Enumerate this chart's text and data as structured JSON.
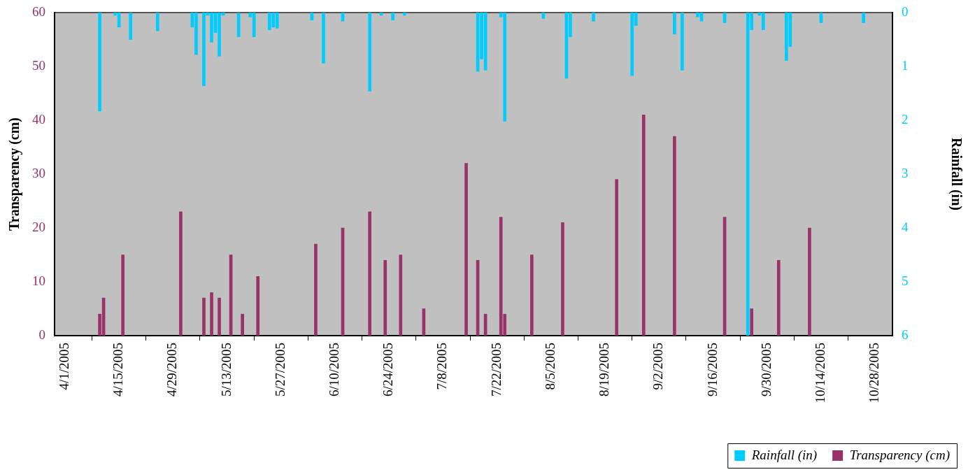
{
  "chart_data": {
    "type": "bar",
    "xlabel": null,
    "ylabel": "Transparency (cm)",
    "y2label": "Rainfall (in)",
    "xlim": [
      "2005-03-29T07:00",
      "2005-11-01T12:00"
    ],
    "xticks": [
      {
        "value": "2005-04-01",
        "label": "4/1/2005"
      },
      {
        "value": "2005-04-15",
        "label": "4/15/2005"
      },
      {
        "value": "2005-04-29",
        "label": "4/29/2005"
      },
      {
        "value": "2005-05-13",
        "label": "5/13/2005"
      },
      {
        "value": "2005-05-27",
        "label": "5/27/2005"
      },
      {
        "value": "2005-06-10",
        "label": "6/10/2005"
      },
      {
        "value": "2005-06-24",
        "label": "6/24/2005"
      },
      {
        "value": "2005-07-08",
        "label": "7/8/2005"
      },
      {
        "value": "2005-07-22",
        "label": "7/22/2005"
      },
      {
        "value": "2005-08-05",
        "label": "8/5/2005"
      },
      {
        "value": "2005-08-19",
        "label": "8/19/2005"
      },
      {
        "value": "2005-09-02",
        "label": "9/2/2005"
      },
      {
        "value": "2005-09-16",
        "label": "9/16/2005"
      },
      {
        "value": "2005-09-30",
        "label": "9/30/2005"
      },
      {
        "value": "2005-10-14",
        "label": "10/14/2005"
      },
      {
        "value": "2005-10-28",
        "label": "10/28/2005"
      }
    ],
    "ylim": [
      0,
      60
    ],
    "yticks": [
      0,
      10,
      20,
      30,
      40,
      50,
      60
    ],
    "y2lim": [
      6,
      0
    ],
    "y2ticks": [
      0,
      1,
      2,
      3,
      4,
      5,
      6
    ],
    "grid": false,
    "legend": "bottom right",
    "series": [
      {
        "name": "Rainfall (in)",
        "color": "#00ccff",
        "axis": "y2",
        "x": [
          "2005-04-10",
          "2005-04-14",
          "2005-04-15",
          "2005-04-18",
          "2005-04-25",
          "2005-05-04",
          "2005-05-05",
          "2005-05-07",
          "2005-05-08",
          "2005-05-09",
          "2005-05-10",
          "2005-05-11",
          "2005-05-12",
          "2005-05-16",
          "2005-05-19",
          "2005-05-20",
          "2005-05-24",
          "2005-05-25",
          "2005-05-26",
          "2005-06-04",
          "2005-06-07",
          "2005-06-12",
          "2005-06-19",
          "2005-06-22",
          "2005-06-25",
          "2005-06-28",
          "2005-07-17",
          "2005-07-18",
          "2005-07-19",
          "2005-07-23",
          "2005-07-24",
          "2005-08-03",
          "2005-08-09",
          "2005-08-10",
          "2005-08-16",
          "2005-08-26",
          "2005-08-27",
          "2005-09-06",
          "2005-09-08",
          "2005-09-12",
          "2005-09-13",
          "2005-09-19",
          "2005-09-25",
          "2005-09-26",
          "2005-09-28",
          "2005-09-29",
          "2005-10-05",
          "2005-10-06",
          "2005-10-14",
          "2005-10-25"
        ],
        "values": [
          1.83,
          0.05,
          0.27,
          0.5,
          0.34,
          0.27,
          0.78,
          1.36,
          0.05,
          0.55,
          0.37,
          0.81,
          0.05,
          0.45,
          0.08,
          0.45,
          0.32,
          0.27,
          0.29,
          0.14,
          0.94,
          0.16,
          1.46,
          0.05,
          0.14,
          0.05,
          1.09,
          0.86,
          1.07,
          0.08,
          2.02,
          0.11,
          1.22,
          0.45,
          0.16,
          1.17,
          0.24,
          0.4,
          1.07,
          0.08,
          0.16,
          0.19,
          6,
          0.32,
          0.05,
          0.32,
          0.89,
          0.63,
          0.19,
          0.19
        ]
      },
      {
        "name": "Transparency (cm)",
        "color": "#993366",
        "x": [
          "2005-04-10",
          "2005-04-11",
          "2005-04-16",
          "2005-05-01",
          "2005-05-07",
          "2005-05-09",
          "2005-05-11",
          "2005-05-14",
          "2005-05-17",
          "2005-05-21",
          "2005-06-05",
          "2005-06-12",
          "2005-06-19",
          "2005-06-23",
          "2005-06-27",
          "2005-07-03",
          "2005-07-14",
          "2005-07-17",
          "2005-07-19",
          "2005-07-23",
          "2005-07-24",
          "2005-07-31",
          "2005-08-08",
          "2005-08-22",
          "2005-08-29",
          "2005-09-06",
          "2005-09-19",
          "2005-09-26",
          "2005-10-03",
          "2005-10-11"
        ],
        "values": [
          4,
          7,
          15,
          23,
          7,
          8,
          7,
          15,
          4,
          11,
          17,
          20,
          23,
          14,
          15,
          5,
          32,
          14,
          4,
          22,
          4,
          15,
          21,
          29,
          41,
          37,
          22,
          5,
          14,
          20
        ]
      }
    ]
  }
}
